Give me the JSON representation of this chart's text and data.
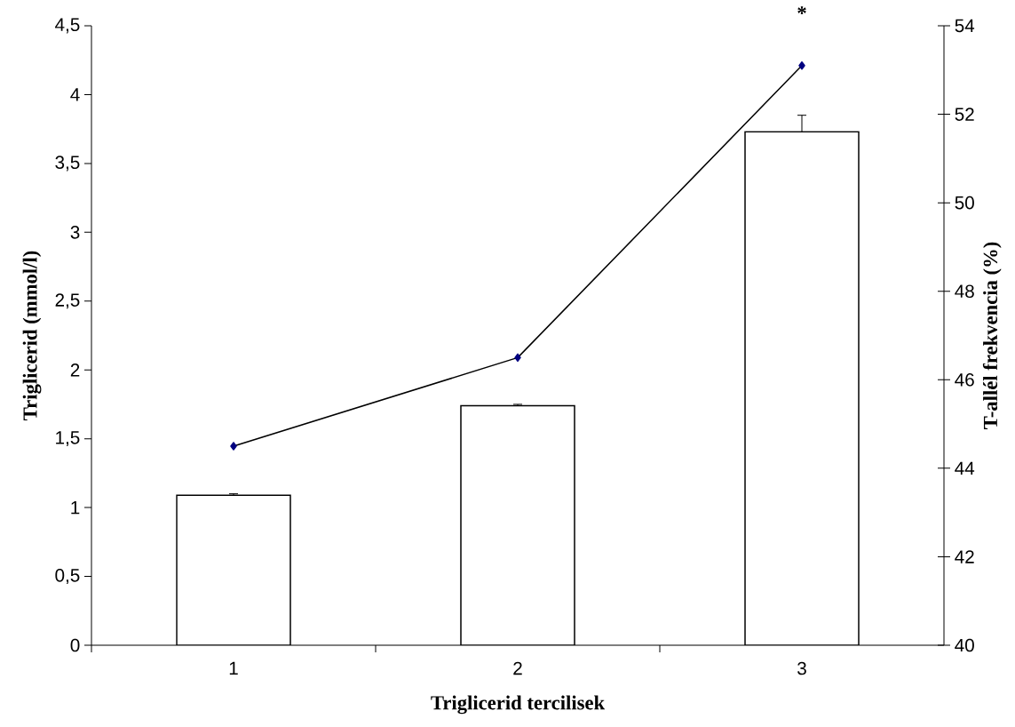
{
  "chart_data": {
    "type": "bar",
    "xlabel": "Triglicerid tercilisek",
    "ylabel": "Triglicerid (mmol/l)",
    "y2label": "T-allél frekvencia (%)",
    "categories": [
      "1",
      "2",
      "3"
    ],
    "series": [
      {
        "color": "#ffffff",
        "values": [
          1.09,
          1.74,
          3.73
        ],
        "errors": [
          [
            1.09,
            1.1
          ],
          [
            1.74,
            1.75
          ],
          [
            3.73,
            3.85
          ]
        ]
      },
      {
        "type": "line",
        "axis": "y2",
        "color": "#000080",
        "marker": "diamond",
        "values": [
          44.5,
          46.5,
          53.1
        ]
      }
    ],
    "ylim": [
      0,
      4.5
    ],
    "yticks": [
      0,
      {
        "value": 0.5,
        "label": "0,5"
      },
      1,
      {
        "value": 1.5,
        "label": "1,5"
      },
      2,
      {
        "value": 2.5,
        "label": "2,5"
      },
      3,
      {
        "value": 3.5,
        "label": "3,5"
      },
      4,
      {
        "value": 4.5,
        "label": "4,5"
      }
    ],
    "y2lim": [
      40,
      54
    ],
    "y2ticks": [
      40,
      42,
      44,
      46,
      48,
      50,
      52,
      54
    ],
    "annotations": [
      "*"
    ],
    "grid": false
  }
}
